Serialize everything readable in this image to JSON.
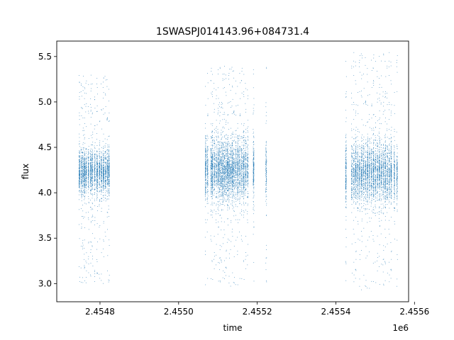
{
  "chart_data": {
    "type": "scatter",
    "title": "1SWASPJ014143.96+084731.4",
    "xlabel": "time",
    "ylabel": "flux",
    "x_offset_label": "1e6",
    "xlim": [
      2454690,
      2455585
    ],
    "ylim": [
      2.8,
      5.67
    ],
    "x_ticks": [
      2454800,
      2455000,
      2455200,
      2455400,
      2455600
    ],
    "x_tick_labels": [
      "2.4548",
      "2.4550",
      "2.4552",
      "2.4554",
      "2.4556"
    ],
    "y_ticks": [
      3.0,
      3.5,
      4.0,
      4.5,
      5.0,
      5.5
    ],
    "y_tick_labels": [
      "3.0",
      "3.5",
      "4.0",
      "4.5",
      "5.0",
      "5.5"
    ],
    "grid": false,
    "marker_color": "#1f77b4",
    "series": [
      {
        "season": 1,
        "x_range": [
          2454745,
          2454825
        ],
        "flux_center": 4.23,
        "flux_core_spread": 0.12,
        "flux_outlier_range": [
          3.0,
          5.3
        ],
        "nights": [
          2454747,
          2454752,
          2454756,
          2454760,
          2454764,
          2454770,
          2454776,
          2454780,
          2454786,
          2454792,
          2454798,
          2454803,
          2454808,
          2454813,
          2454818,
          2454822
        ]
      },
      {
        "season": 2,
        "x_range": [
          2455060,
          2455225
        ],
        "flux_center": 4.25,
        "flux_core_spread": 0.16,
        "flux_outlier_range": [
          2.97,
          5.4
        ],
        "nights": [
          2455068,
          2455073,
          2455082,
          2455085,
          2455090,
          2455095,
          2455100,
          2455104,
          2455108,
          2455112,
          2455116,
          2455120,
          2455124,
          2455128,
          2455132,
          2455136,
          2455140,
          2455145,
          2455150,
          2455155,
          2455160,
          2455165,
          2455170,
          2455175,
          2455190,
          2455222
        ]
      },
      {
        "season": 3,
        "x_range": [
          2455425,
          2455570
        ],
        "flux_center": 4.22,
        "flux_core_spread": 0.16,
        "flux_outlier_range": [
          2.93,
          5.55
        ],
        "nights": [
          2455425,
          2455440,
          2455445,
          2455450,
          2455455,
          2455460,
          2455465,
          2455470,
          2455475,
          2455480,
          2455485,
          2455490,
          2455495,
          2455500,
          2455505,
          2455510,
          2455515,
          2455520,
          2455525,
          2455530,
          2455535,
          2455540,
          2455548,
          2455555
        ]
      }
    ]
  }
}
